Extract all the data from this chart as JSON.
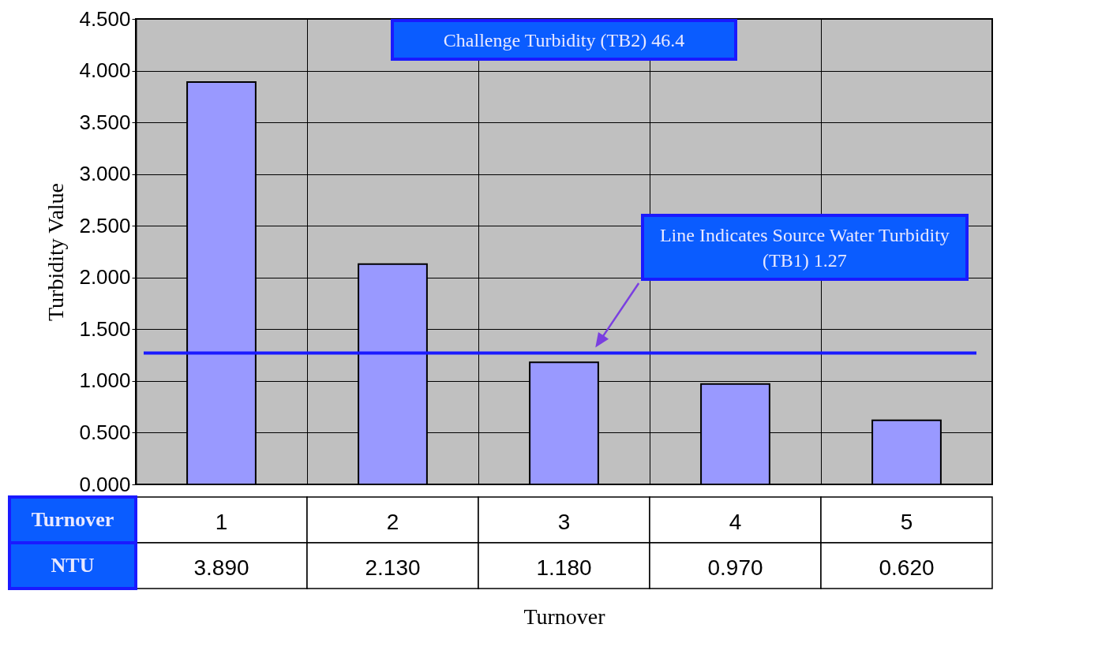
{
  "chart_data": {
    "type": "bar",
    "categories": [
      "1",
      "2",
      "3",
      "4",
      "5"
    ],
    "values": [
      3.89,
      2.13,
      1.18,
      0.97,
      0.62
    ],
    "color": "#9999ff",
    "ylabel": "Turbidity Value",
    "xlabel": "Turnover",
    "ylim": [
      0,
      4.5
    ],
    "yticks": [
      {
        "value": 0,
        "label": "0.000"
      },
      {
        "value": 0.5,
        "label": "0.500"
      },
      {
        "value": 1,
        "label": "1.000"
      },
      {
        "value": 1.5,
        "label": "1.500"
      },
      {
        "value": 2,
        "label": "2.000"
      },
      {
        "value": 2.5,
        "label": "2.500"
      },
      {
        "value": 3,
        "label": "3.000"
      },
      {
        "value": 3.5,
        "label": "3.500"
      },
      {
        "value": 4,
        "label": "4.000"
      },
      {
        "value": 4.5,
        "label": "4.500"
      }
    ],
    "grid": true,
    "value_labels": [
      "3.890",
      "2.130",
      "1.180",
      "0.970",
      "0.620"
    ],
    "ref_lines": [
      {
        "axis": "y",
        "value": 1.27,
        "color": "#1a1aff"
      }
    ],
    "annotations": [
      "Challenge Turbidity (TB2) 46.4",
      "Line Indicates Source Water Turbidity (TB1) 1.27",
      "Turnover",
      "NTU"
    ]
  }
}
